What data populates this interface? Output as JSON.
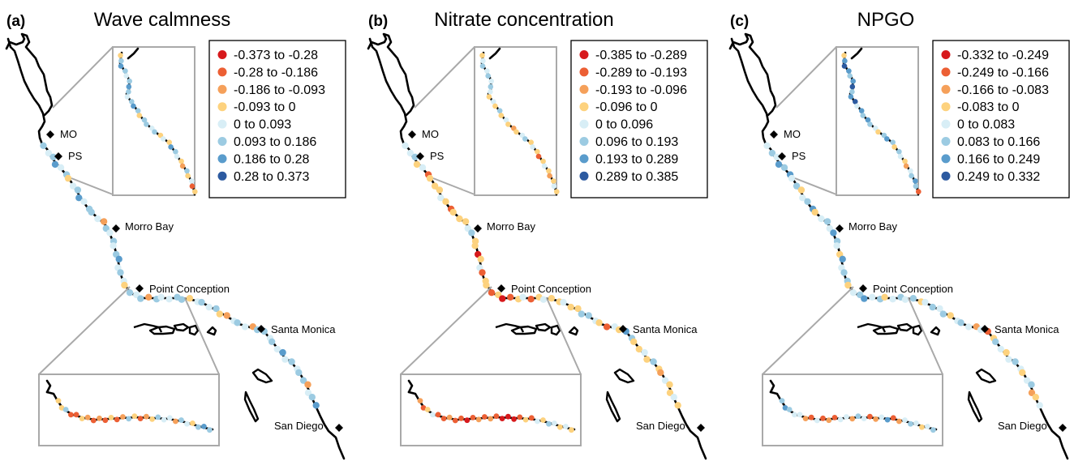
{
  "colors": [
    "#d7191c",
    "#ec5f34",
    "#f5a05a",
    "#fdd27e",
    "#d8eef6",
    "#9ccbe2",
    "#5a9ccc",
    "#2c5aa0"
  ],
  "places": {
    "mo": "MO",
    "ps": "PS",
    "morro": "Morro Bay",
    "pc": "Point Conception",
    "sm": "Santa Monica",
    "sd": "San Diego"
  },
  "panels": [
    {
      "letter": "(a)",
      "title": "Wave calmness",
      "legend": [
        "-0.373 to -0.28",
        "-0.28 to -0.186",
        "-0.186 to -0.093",
        "-0.093 to 0",
        "0 to 0.093",
        "0.093 to 0.186",
        "0.186 to 0.28",
        "0.28 to 0.373"
      ]
    },
    {
      "letter": "(b)",
      "title": "Nitrate concentration",
      "legend": [
        "-0.385 to -0.289",
        "-0.289 to -0.193",
        "-0.193 to -0.096",
        "-0.096 to 0",
        "0 to 0.096",
        "0.096 to 0.193",
        "0.193 to 0.289",
        "0.289 to 0.385"
      ]
    },
    {
      "letter": "(c)",
      "title": "NPGO",
      "legend": [
        "-0.332 to -0.249",
        "-0.249 to -0.166",
        "-0.166 to -0.083",
        "-0.083 to 0",
        "0 to 0.083",
        "0.083 to 0.166",
        "0.166 to 0.249",
        "0.249 to 0.332"
      ]
    }
  ]
}
